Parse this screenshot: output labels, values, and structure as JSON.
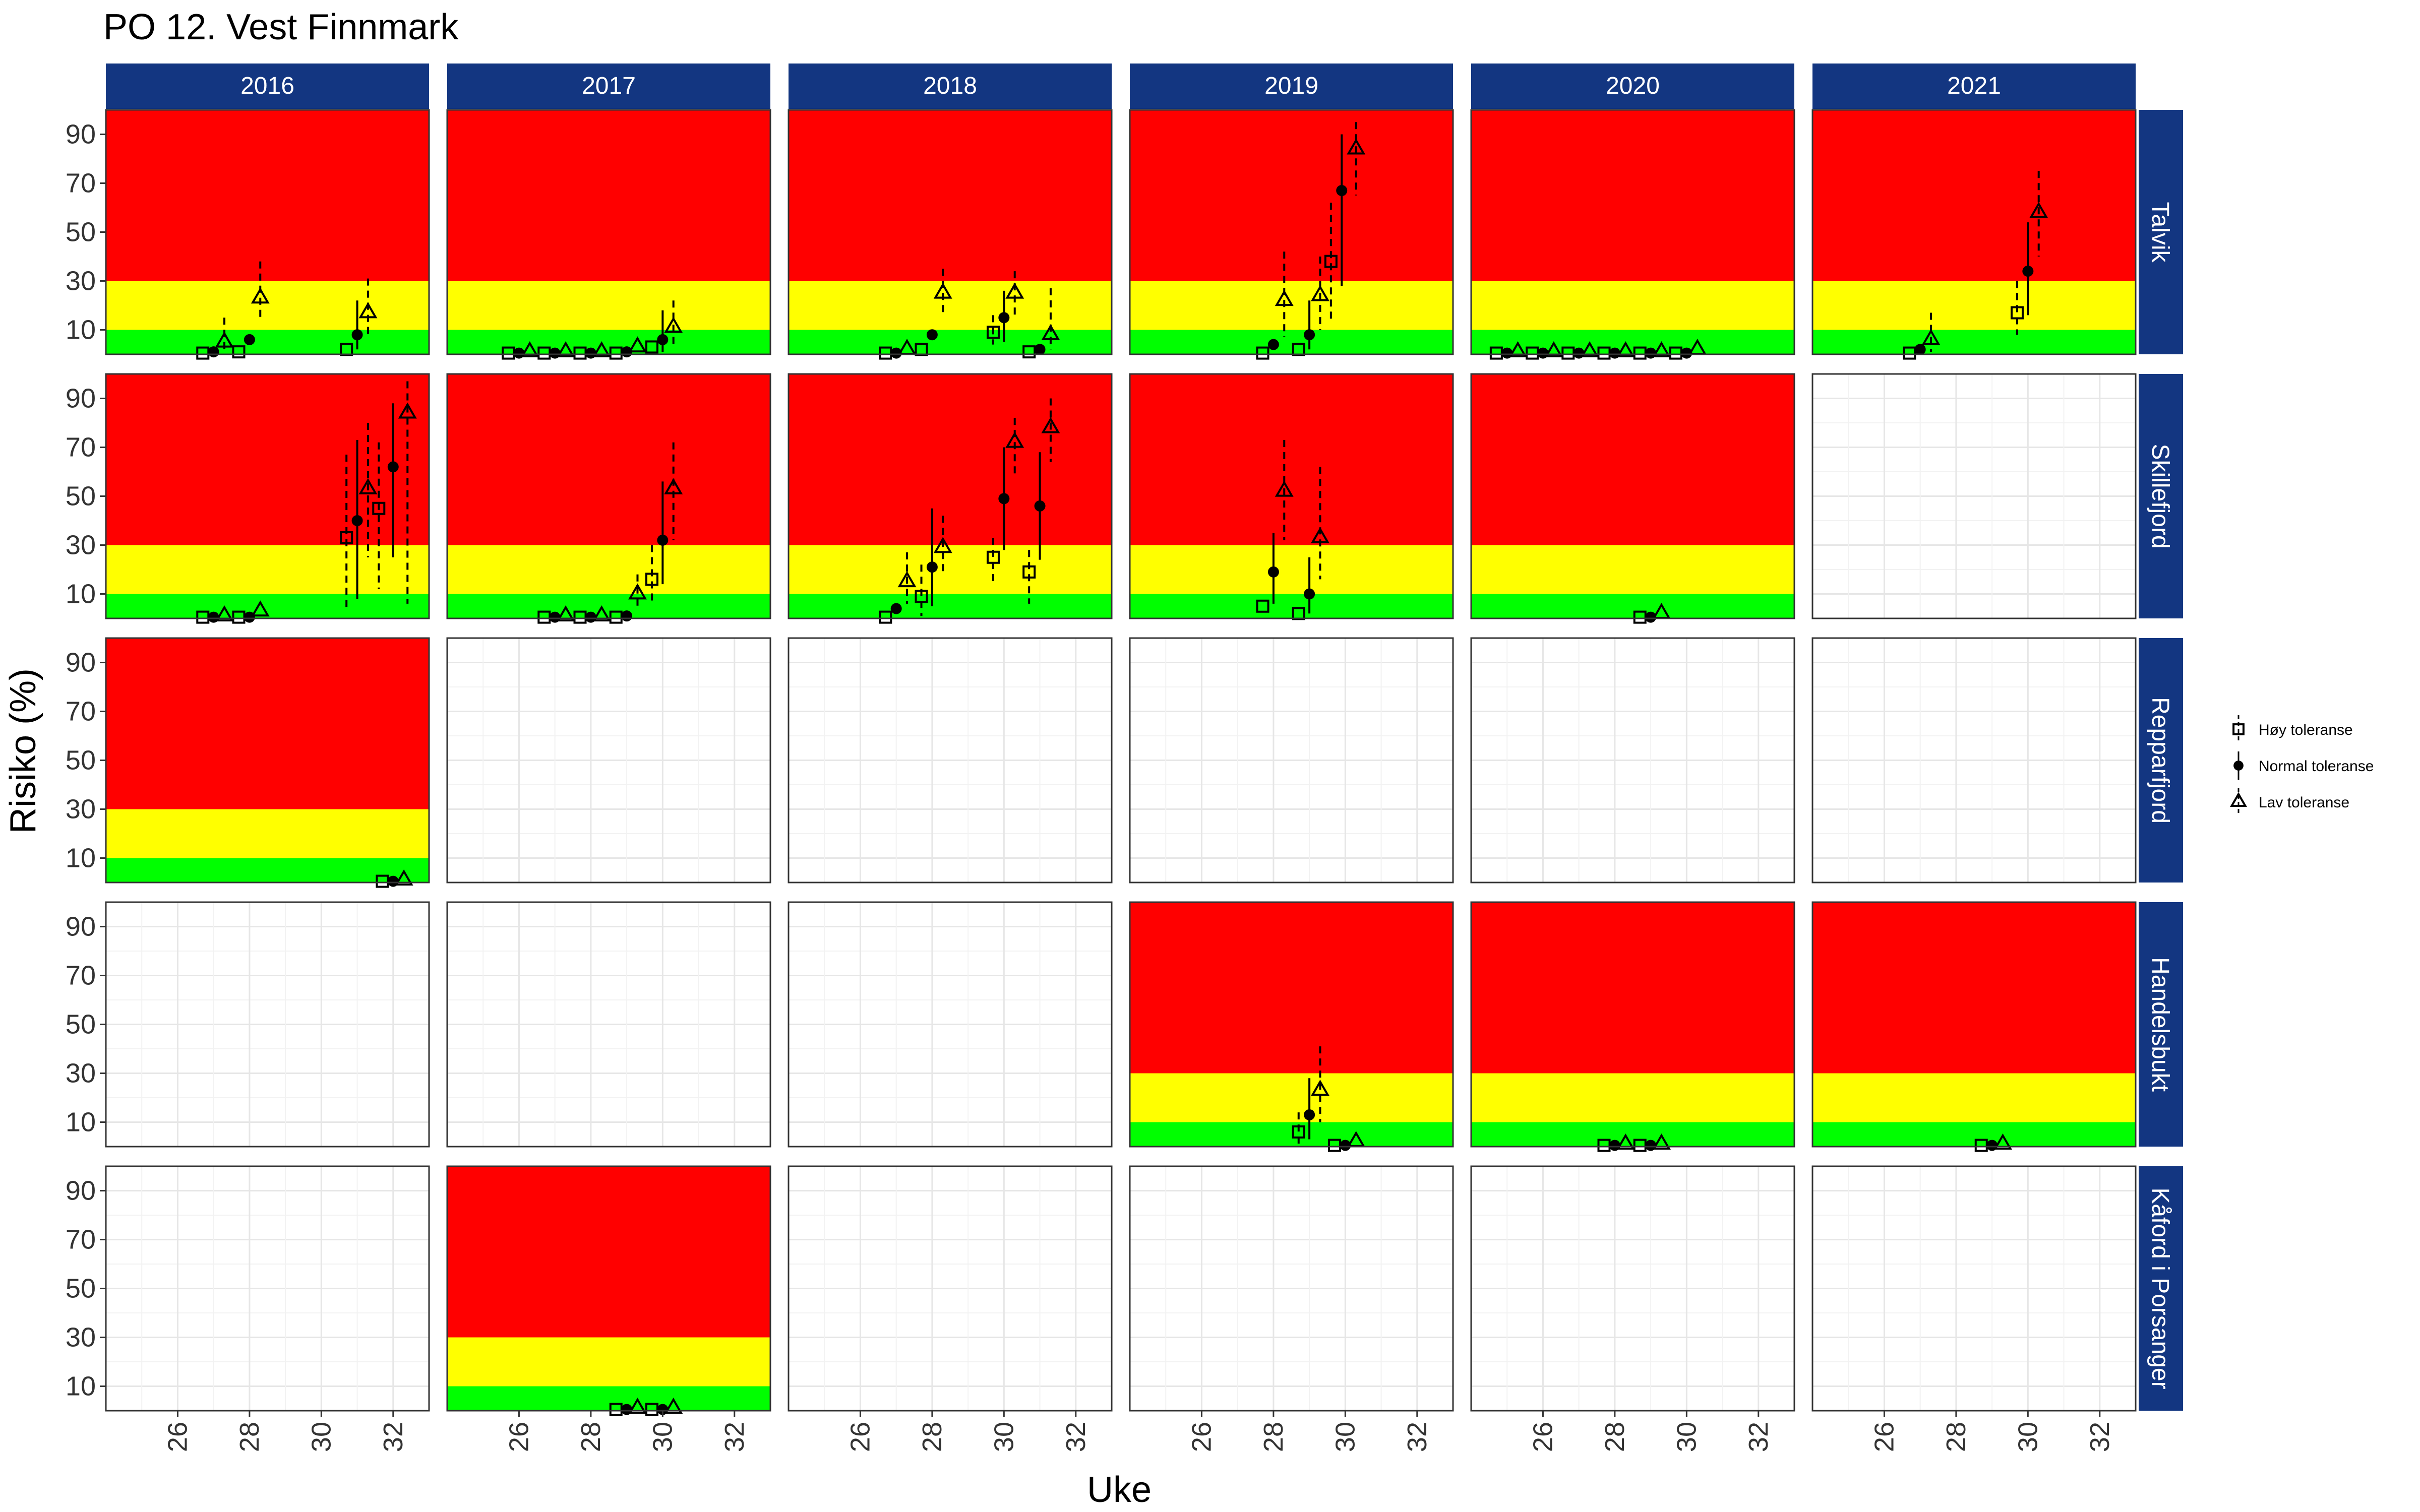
{
  "chart_data": {
    "type": "scatter",
    "title": "PO 12. Vest Finnmark",
    "xlabel": "Uke",
    "ylabel": "Risiko (%)",
    "xlim": [
      24,
      33
    ],
    "ylim": [
      0,
      100
    ],
    "x_ticks": [
      26,
      28,
      30,
      32
    ],
    "y_ticks": [
      10,
      30,
      50,
      70,
      90
    ],
    "grid": true,
    "legend_position": "right",
    "zones": {
      "green": [
        0,
        10
      ],
      "yellow": [
        10,
        30
      ],
      "red": [
        30,
        100
      ],
      "colors": {
        "green": "#00ff00",
        "yellow": "#ffff00",
        "red": "#ff0000"
      }
    },
    "columns": [
      "2016",
      "2017",
      "2018",
      "2019",
      "2020",
      "2021"
    ],
    "rows": [
      "Talvik",
      "Skillefjord",
      "Repparfjord",
      "Handelsbukt",
      "Kåford i Porsanger"
    ],
    "legend": [
      {
        "series": "hoy",
        "label": "Høy toleranse",
        "marker": "square"
      },
      {
        "series": "normal",
        "label": "Normal toleranse",
        "marker": "dot"
      },
      {
        "series": "lav",
        "label": "Lav toleranse",
        "marker": "triangle"
      }
    ],
    "panels": [
      {
        "row": "Talvik",
        "col": "2016",
        "zones": true,
        "points": [
          {
            "s": "hoy",
            "x": 26.7,
            "y": 0.5
          },
          {
            "s": "normal",
            "x": 27,
            "y": 1
          },
          {
            "s": "lav",
            "x": 27.3,
            "y": 5,
            "lo": 1,
            "hi": 15
          },
          {
            "s": "hoy",
            "x": 27.7,
            "y": 1
          },
          {
            "s": "normal",
            "x": 28,
            "y": 6
          },
          {
            "s": "lav",
            "x": 28.3,
            "y": 23,
            "lo": 14,
            "hi": 38
          },
          {
            "s": "hoy",
            "x": 30.7,
            "y": 2
          },
          {
            "s": "normal",
            "x": 31,
            "y": 8,
            "lo": 2,
            "hi": 22
          },
          {
            "s": "lav",
            "x": 31.3,
            "y": 17,
            "lo": 7,
            "hi": 31
          }
        ]
      },
      {
        "row": "Talvik",
        "col": "2017",
        "zones": true,
        "points": [
          {
            "s": "hoy",
            "x": 25.7,
            "y": 0.5
          },
          {
            "s": "normal",
            "x": 26,
            "y": 0.5
          },
          {
            "s": "lav",
            "x": 26.3,
            "y": 1
          },
          {
            "s": "hoy",
            "x": 26.7,
            "y": 0.5
          },
          {
            "s": "normal",
            "x": 27,
            "y": 0.5
          },
          {
            "s": "lav",
            "x": 27.3,
            "y": 1
          },
          {
            "s": "hoy",
            "x": 27.7,
            "y": 0.5
          },
          {
            "s": "normal",
            "x": 28,
            "y": 0.5
          },
          {
            "s": "lav",
            "x": 28.3,
            "y": 1
          },
          {
            "s": "hoy",
            "x": 28.7,
            "y": 0.5
          },
          {
            "s": "normal",
            "x": 29,
            "y": 1
          },
          {
            "s": "lav",
            "x": 29.3,
            "y": 3
          },
          {
            "s": "hoy",
            "x": 29.7,
            "y": 3
          },
          {
            "s": "normal",
            "x": 30,
            "y": 6,
            "lo": 1,
            "hi": 18
          },
          {
            "s": "lav",
            "x": 30.3,
            "y": 11,
            "lo": 4,
            "hi": 22
          }
        ]
      },
      {
        "row": "Talvik",
        "col": "2018",
        "zones": true,
        "points": [
          {
            "s": "hoy",
            "x": 26.7,
            "y": 0.5
          },
          {
            "s": "normal",
            "x": 27,
            "y": 0.5
          },
          {
            "s": "lav",
            "x": 27.3,
            "y": 2
          },
          {
            "s": "hoy",
            "x": 27.7,
            "y": 2
          },
          {
            "s": "normal",
            "x": 28,
            "y": 8
          },
          {
            "s": "lav",
            "x": 28.3,
            "y": 25,
            "lo": 16,
            "hi": 35
          },
          {
            "s": "hoy",
            "x": 29.7,
            "y": 9,
            "lo": 4,
            "hi": 16
          },
          {
            "s": "normal",
            "x": 30,
            "y": 15,
            "lo": 5,
            "hi": 26
          },
          {
            "s": "lav",
            "x": 30.3,
            "y": 25,
            "lo": 16,
            "hi": 34
          },
          {
            "s": "hoy",
            "x": 30.7,
            "y": 1
          },
          {
            "s": "normal",
            "x": 31,
            "y": 2
          },
          {
            "s": "lav",
            "x": 31.3,
            "y": 8,
            "lo": 2,
            "hi": 27
          }
        ]
      },
      {
        "row": "Talvik",
        "col": "2019",
        "zones": true,
        "points": [
          {
            "s": "hoy",
            "x": 27.7,
            "y": 0.5
          },
          {
            "s": "normal",
            "x": 28,
            "y": 4
          },
          {
            "s": "lav",
            "x": 28.3,
            "y": 22,
            "lo": 7,
            "hi": 42
          },
          {
            "s": "hoy",
            "x": 28.7,
            "y": 2
          },
          {
            "s": "normal",
            "x": 29,
            "y": 8,
            "lo": 2,
            "hi": 22
          },
          {
            "s": "lav",
            "x": 29.3,
            "y": 24,
            "lo": 10,
            "hi": 40
          },
          {
            "s": "hoy",
            "x": 29.6,
            "y": 38,
            "lo": 14,
            "hi": 62
          },
          {
            "s": "normal",
            "x": 29.9,
            "y": 67,
            "lo": 28,
            "hi": 90
          },
          {
            "s": "lav",
            "x": 30.3,
            "y": 84,
            "lo": 65,
            "hi": 95
          }
        ]
      },
      {
        "row": "Talvik",
        "col": "2020",
        "zones": true,
        "points": [
          {
            "s": "hoy",
            "x": 24.7,
            "y": 0.5
          },
          {
            "s": "normal",
            "x": 25,
            "y": 0.5
          },
          {
            "s": "lav",
            "x": 25.3,
            "y": 1
          },
          {
            "s": "hoy",
            "x": 25.7,
            "y": 0.5
          },
          {
            "s": "normal",
            "x": 26,
            "y": 0.5
          },
          {
            "s": "lav",
            "x": 26.3,
            "y": 1
          },
          {
            "s": "hoy",
            "x": 26.7,
            "y": 0.5
          },
          {
            "s": "normal",
            "x": 27,
            "y": 0.5
          },
          {
            "s": "lav",
            "x": 27.3,
            "y": 1
          },
          {
            "s": "hoy",
            "x": 27.7,
            "y": 0.5
          },
          {
            "s": "normal",
            "x": 28,
            "y": 0.5
          },
          {
            "s": "lav",
            "x": 28.3,
            "y": 1
          },
          {
            "s": "hoy",
            "x": 28.7,
            "y": 0.5
          },
          {
            "s": "normal",
            "x": 29,
            "y": 0.5
          },
          {
            "s": "lav",
            "x": 29.3,
            "y": 1
          },
          {
            "s": "hoy",
            "x": 29.7,
            "y": 0.5
          },
          {
            "s": "normal",
            "x": 30,
            "y": 0.5
          },
          {
            "s": "lav",
            "x": 30.3,
            "y": 2
          }
        ]
      },
      {
        "row": "Talvik",
        "col": "2021",
        "zones": true,
        "points": [
          {
            "s": "hoy",
            "x": 26.7,
            "y": 0.5
          },
          {
            "s": "normal",
            "x": 27,
            "y": 2
          },
          {
            "s": "lav",
            "x": 27.3,
            "y": 6,
            "lo": 1,
            "hi": 17
          },
          {
            "s": "hoy",
            "x": 29.7,
            "y": 17,
            "lo": 8,
            "hi": 30
          },
          {
            "s": "normal",
            "x": 30,
            "y": 34,
            "lo": 16,
            "hi": 54
          },
          {
            "s": "lav",
            "x": 30.3,
            "y": 58,
            "lo": 40,
            "hi": 75
          }
        ]
      },
      {
        "row": "Skillefjord",
        "col": "2016",
        "zones": true,
        "points": [
          {
            "s": "hoy",
            "x": 26.7,
            "y": 0.5
          },
          {
            "s": "normal",
            "x": 27,
            "y": 0.5
          },
          {
            "s": "lav",
            "x": 27.3,
            "y": 1
          },
          {
            "s": "hoy",
            "x": 27.7,
            "y": 0.5
          },
          {
            "s": "normal",
            "x": 28,
            "y": 0.5
          },
          {
            "s": "lav",
            "x": 28.3,
            "y": 3
          },
          {
            "s": "hoy",
            "x": 30.7,
            "y": 33,
            "lo": 4,
            "hi": 67
          },
          {
            "s": "normal",
            "x": 31,
            "y": 40,
            "lo": 8,
            "hi": 73
          },
          {
            "s": "lav",
            "x": 31.3,
            "y": 53,
            "lo": 25,
            "hi": 80
          },
          {
            "s": "hoy",
            "x": 31.6,
            "y": 45,
            "lo": 12,
            "hi": 72
          },
          {
            "s": "normal",
            "x": 32,
            "y": 62,
            "lo": 25,
            "hi": 88
          },
          {
            "s": "lav",
            "x": 32.4,
            "y": 84,
            "lo": 6,
            "hi": 97
          }
        ]
      },
      {
        "row": "Skillefjord",
        "col": "2017",
        "zones": true,
        "points": [
          {
            "s": "hoy",
            "x": 26.7,
            "y": 0.5
          },
          {
            "s": "normal",
            "x": 27,
            "y": 0.5
          },
          {
            "s": "lav",
            "x": 27.3,
            "y": 1
          },
          {
            "s": "hoy",
            "x": 27.7,
            "y": 0.5
          },
          {
            "s": "normal",
            "x": 28,
            "y": 0.5
          },
          {
            "s": "lav",
            "x": 28.3,
            "y": 1
          },
          {
            "s": "hoy",
            "x": 28.7,
            "y": 0.5
          },
          {
            "s": "normal",
            "x": 29,
            "y": 1
          },
          {
            "s": "lav",
            "x": 29.3,
            "y": 10,
            "lo": 4,
            "hi": 18
          },
          {
            "s": "hoy",
            "x": 29.7,
            "y": 16,
            "lo": 6,
            "hi": 30
          },
          {
            "s": "normal",
            "x": 30,
            "y": 32,
            "lo": 14,
            "hi": 56
          },
          {
            "s": "lav",
            "x": 30.3,
            "y": 53,
            "lo": 32,
            "hi": 72
          }
        ]
      },
      {
        "row": "Skillefjord",
        "col": "2018",
        "zones": true,
        "points": [
          {
            "s": "hoy",
            "x": 26.7,
            "y": 0.5
          },
          {
            "s": "normal",
            "x": 27,
            "y": 4
          },
          {
            "s": "lav",
            "x": 27.3,
            "y": 15,
            "lo": 6,
            "hi": 27
          },
          {
            "s": "hoy",
            "x": 27.7,
            "y": 9,
            "lo": 1,
            "hi": 22
          },
          {
            "s": "normal",
            "x": 28,
            "y": 21,
            "lo": 5,
            "hi": 45
          },
          {
            "s": "lav",
            "x": 28.3,
            "y": 29,
            "lo": 18,
            "hi": 42
          },
          {
            "s": "hoy",
            "x": 29.7,
            "y": 25,
            "lo": 15,
            "hi": 33
          },
          {
            "s": "normal",
            "x": 30,
            "y": 49,
            "lo": 28,
            "hi": 70
          },
          {
            "s": "lav",
            "x": 30.3,
            "y": 72,
            "lo": 58,
            "hi": 82
          },
          {
            "s": "hoy",
            "x": 30.7,
            "y": 19,
            "lo": 6,
            "hi": 28
          },
          {
            "s": "normal",
            "x": 31,
            "y": 46,
            "lo": 24,
            "hi": 68
          },
          {
            "s": "lav",
            "x": 31.3,
            "y": 78,
            "lo": 64,
            "hi": 90
          }
        ]
      },
      {
        "row": "Skillefjord",
        "col": "2019",
        "zones": true,
        "points": [
          {
            "s": "hoy",
            "x": 27.7,
            "y": 5
          },
          {
            "s": "normal",
            "x": 28,
            "y": 19,
            "lo": 6,
            "hi": 35
          },
          {
            "s": "lav",
            "x": 28.3,
            "y": 52,
            "lo": 32,
            "hi": 73
          },
          {
            "s": "hoy",
            "x": 28.7,
            "y": 2
          },
          {
            "s": "normal",
            "x": 29,
            "y": 10,
            "lo": 2,
            "hi": 25
          },
          {
            "s": "lav",
            "x": 29.3,
            "y": 33,
            "lo": 16,
            "hi": 62
          }
        ]
      },
      {
        "row": "Skillefjord",
        "col": "2020",
        "zones": true,
        "points": [
          {
            "s": "hoy",
            "x": 28.7,
            "y": 0.5
          },
          {
            "s": "normal",
            "x": 29,
            "y": 0.5
          },
          {
            "s": "lav",
            "x": 29.3,
            "y": 2
          }
        ]
      },
      {
        "row": "Skillefjord",
        "col": "2021",
        "zones": false,
        "points": []
      },
      {
        "row": "Repparfjord",
        "col": "2016",
        "zones": true,
        "points": [
          {
            "s": "hoy",
            "x": 31.7,
            "y": 0.5
          },
          {
            "s": "normal",
            "x": 32,
            "y": 0.5
          },
          {
            "s": "lav",
            "x": 32.3,
            "y": 1
          }
        ]
      },
      {
        "row": "Repparfjord",
        "col": "2017",
        "zones": false,
        "points": []
      },
      {
        "row": "Repparfjord",
        "col": "2018",
        "zones": false,
        "points": []
      },
      {
        "row": "Repparfjord",
        "col": "2019",
        "zones": false,
        "points": []
      },
      {
        "row": "Repparfjord",
        "col": "2020",
        "zones": false,
        "points": []
      },
      {
        "row": "Repparfjord",
        "col": "2021",
        "zones": false,
        "points": []
      },
      {
        "row": "Handelsbukt",
        "col": "2016",
        "zones": false,
        "points": []
      },
      {
        "row": "Handelsbukt",
        "col": "2017",
        "zones": false,
        "points": []
      },
      {
        "row": "Handelsbukt",
        "col": "2018",
        "zones": false,
        "points": []
      },
      {
        "row": "Handelsbukt",
        "col": "2019",
        "zones": true,
        "points": [
          {
            "s": "hoy",
            "x": 28.7,
            "y": 6,
            "lo": 1,
            "hi": 14
          },
          {
            "s": "normal",
            "x": 29,
            "y": 13,
            "lo": 3,
            "hi": 28
          },
          {
            "s": "lav",
            "x": 29.3,
            "y": 23,
            "lo": 10,
            "hi": 41
          },
          {
            "s": "hoy",
            "x": 29.7,
            "y": 0.5
          },
          {
            "s": "normal",
            "x": 30,
            "y": 0.5
          },
          {
            "s": "lav",
            "x": 30.3,
            "y": 2
          }
        ]
      },
      {
        "row": "Handelsbukt",
        "col": "2020",
        "zones": true,
        "points": [
          {
            "s": "hoy",
            "x": 27.7,
            "y": 0.5
          },
          {
            "s": "normal",
            "x": 28,
            "y": 0.5
          },
          {
            "s": "lav",
            "x": 28.3,
            "y": 1
          },
          {
            "s": "hoy",
            "x": 28.7,
            "y": 0.5
          },
          {
            "s": "normal",
            "x": 29,
            "y": 0.5
          },
          {
            "s": "lav",
            "x": 29.3,
            "y": 1
          }
        ]
      },
      {
        "row": "Handelsbukt",
        "col": "2021",
        "zones": true,
        "points": [
          {
            "s": "hoy",
            "x": 28.7,
            "y": 0.5
          },
          {
            "s": "normal",
            "x": 29,
            "y": 0.5
          },
          {
            "s": "lav",
            "x": 29.3,
            "y": 1
          }
        ]
      },
      {
        "row": "Kåford i Porsanger",
        "col": "2016",
        "zones": false,
        "points": []
      },
      {
        "row": "Kåford i Porsanger",
        "col": "2017",
        "zones": true,
        "points": [
          {
            "s": "hoy",
            "x": 28.7,
            "y": 0.5
          },
          {
            "s": "normal",
            "x": 29,
            "y": 0.5
          },
          {
            "s": "lav",
            "x": 29.3,
            "y": 1
          },
          {
            "s": "hoy",
            "x": 29.7,
            "y": 0.5
          },
          {
            "s": "normal",
            "x": 30,
            "y": 0.5
          },
          {
            "s": "lav",
            "x": 30.3,
            "y": 1
          }
        ]
      },
      {
        "row": "Kåford i Porsanger",
        "col": "2018",
        "zones": false,
        "points": []
      },
      {
        "row": "Kåford i Porsanger",
        "col": "2019",
        "zones": false,
        "points": []
      },
      {
        "row": "Kåford i Porsanger",
        "col": "2020",
        "zones": false,
        "points": []
      },
      {
        "row": "Kåford i Porsanger",
        "col": "2021",
        "zones": false,
        "points": []
      }
    ]
  }
}
